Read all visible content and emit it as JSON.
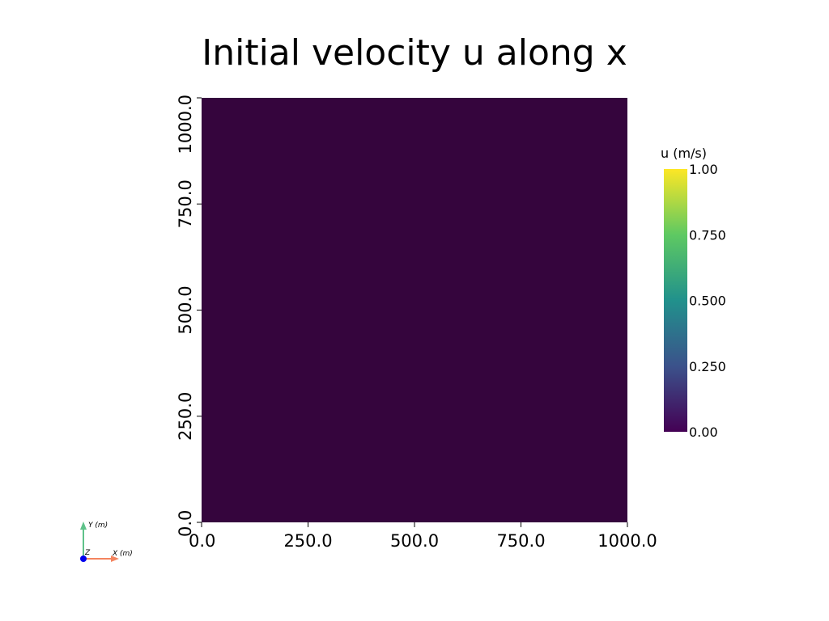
{
  "chart_data": {
    "type": "heatmap",
    "title": "Initial velocity u along x",
    "xlim": [
      0,
      1000
    ],
    "ylim": [
      0,
      1000
    ],
    "x_ticks": [
      0,
      250,
      500,
      750,
      1000
    ],
    "y_ticks": [
      0,
      250,
      500,
      750,
      1000
    ],
    "x_tick_labels": [
      "0.0",
      "250.0",
      "500.0",
      "750.0",
      "1000.0"
    ],
    "y_tick_labels": [
      "0.0",
      "250.0",
      "500.0",
      "750.0",
      "1000.0"
    ],
    "field_value": 0.0,
    "field_color": "#35053d",
    "colorbar": {
      "title": "u (m/s)",
      "range": [
        0,
        1
      ],
      "ticks": [
        0,
        0.25,
        0.5,
        0.75,
        1.0
      ],
      "tick_labels": [
        "0.00",
        "0.250",
        "0.500",
        "0.750",
        "1.00"
      ],
      "colormap": "viridis",
      "colors": [
        "#440154",
        "#3b528b",
        "#21918c",
        "#5ec962",
        "#fde725"
      ]
    },
    "grid": false
  },
  "orientation_axes": {
    "y_label": "Y (m)",
    "x_label": "X (m)",
    "z_label": "Z",
    "x_color": "#f4845f",
    "y_color": "#5fc28a",
    "z_color": "#0000ee"
  }
}
